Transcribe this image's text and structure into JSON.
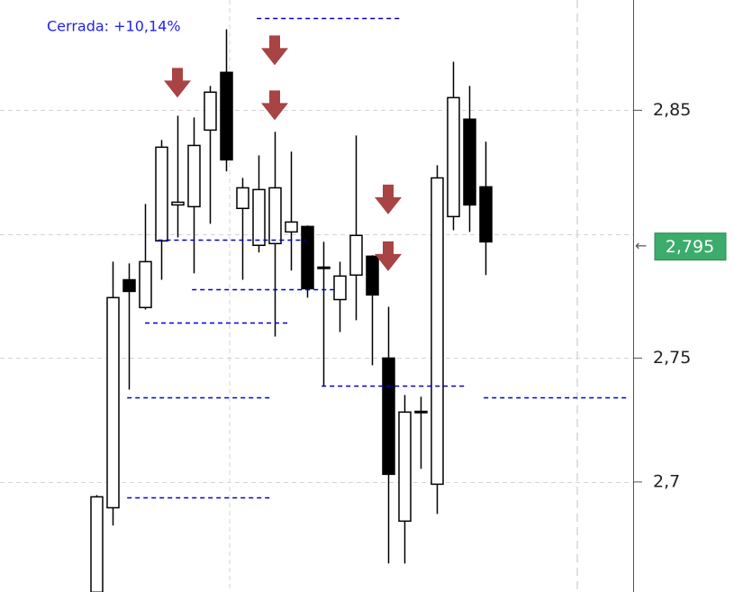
{
  "chart_data": {
    "type": "candlestick",
    "annotation": "Cerrada: +10,14%",
    "ylim": [
      2.6556,
      2.8945
    ],
    "yticks": [
      {
        "value": 2.7,
        "label": "2,7"
      },
      {
        "value": 2.75,
        "label": "2,75"
      },
      {
        "value": 2.85,
        "label": "2,85"
      }
    ],
    "grid_lines": [
      2.7,
      2.75,
      2.8,
      2.85
    ],
    "grid": true,
    "last_price": {
      "value": 2.795,
      "label": "2,795"
    },
    "up_color": "#ffffff",
    "down_color": "#000000",
    "candles": [
      {
        "open": 2.6555,
        "high": 2.6947,
        "low": 2.6555,
        "close": 2.694
      },
      {
        "open": 2.6896,
        "high": 2.7889,
        "low": 2.6824,
        "close": 2.7744
      },
      {
        "open": 2.7816,
        "high": 2.7882,
        "low": 2.7373,
        "close": 2.7769
      },
      {
        "open": 2.7704,
        "high": 2.8122,
        "low": 2.7696,
        "close": 2.7889
      },
      {
        "open": 2.7973,
        "high": 2.838,
        "low": 2.7816,
        "close": 2.8351
      },
      {
        "open": 2.8118,
        "high": 2.8478,
        "low": 2.7987,
        "close": 2.8129
      },
      {
        "open": 2.8111,
        "high": 2.8471,
        "low": 2.7842,
        "close": 2.8358
      },
      {
        "open": 2.842,
        "high": 2.8598,
        "low": 2.8042,
        "close": 2.8573
      },
      {
        "open": 2.8653,
        "high": 2.8827,
        "low": 2.8253,
        "close": 2.83
      },
      {
        "open": 2.8104,
        "high": 2.8227,
        "low": 2.7816,
        "close": 2.8187
      },
      {
        "open": 2.7955,
        "high": 2.8318,
        "low": 2.7926,
        "close": 2.818
      },
      {
        "open": 2.7962,
        "high": 2.8413,
        "low": 2.7587,
        "close": 2.8187
      },
      {
        "open": 2.8009,
        "high": 2.8333,
        "low": 2.7853,
        "close": 2.8049
      },
      {
        "open": 2.8031,
        "high": 2.8035,
        "low": 2.7744,
        "close": 2.778
      },
      {
        "open": 2.7867,
        "high": 2.7969,
        "low": 2.7387,
        "close": 2.7867
      },
      {
        "open": 2.7736,
        "high": 2.7889,
        "low": 2.7605,
        "close": 2.7831
      },
      {
        "open": 2.7835,
        "high": 2.8398,
        "low": 2.7653,
        "close": 2.7995
      },
      {
        "open": 2.7911,
        "high": 2.7915,
        "low": 2.7471,
        "close": 2.7755
      },
      {
        "open": 2.75,
        "high": 2.7707,
        "low": 2.6671,
        "close": 2.7031
      },
      {
        "open": 2.6842,
        "high": 2.7351,
        "low": 2.6671,
        "close": 2.7282
      },
      {
        "open": 2.7285,
        "high": 2.7344,
        "low": 2.7053,
        "close": 2.7285
      },
      {
        "open": 2.6991,
        "high": 2.8278,
        "low": 2.6871,
        "close": 2.8227
      },
      {
        "open": 2.8071,
        "high": 2.8696,
        "low": 2.8016,
        "close": 2.8551
      },
      {
        "open": 2.8464,
        "high": 2.8598,
        "low": 2.8009,
        "close": 2.8118
      },
      {
        "open": 2.8191,
        "high": 2.8373,
        "low": 2.7835,
        "close": 2.7969
      }
    ],
    "levels": [
      {
        "value": 2.8871,
        "start": 9.9,
        "end": 18.9
      },
      {
        "value": 2.7976,
        "start": 3.8,
        "end": 12.9
      },
      {
        "value": 2.7776,
        "start": 5.9,
        "end": 14.9
      },
      {
        "value": 2.7645,
        "start": 3,
        "end": 12
      },
      {
        "value": 2.7387,
        "start": 13.9,
        "end": 22.9
      },
      {
        "value": 2.734,
        "start": 1.9,
        "end": 10.9
      },
      {
        "value": 2.734,
        "start": 23.9,
        "end": 32.9
      },
      {
        "value": 2.6936,
        "start": 1.9,
        "end": 10.9
      }
    ],
    "level_color": "#0000cc",
    "signals": [
      {
        "candle": 5,
        "value": 2.8551
      },
      {
        "candle": 11,
        "value": 2.8682
      },
      {
        "candle": 11,
        "value": 2.846
      },
      {
        "candle": 18,
        "value": 2.808
      },
      {
        "candle": 18,
        "value": 2.7851
      }
    ],
    "signal_color": "#a84444"
  }
}
